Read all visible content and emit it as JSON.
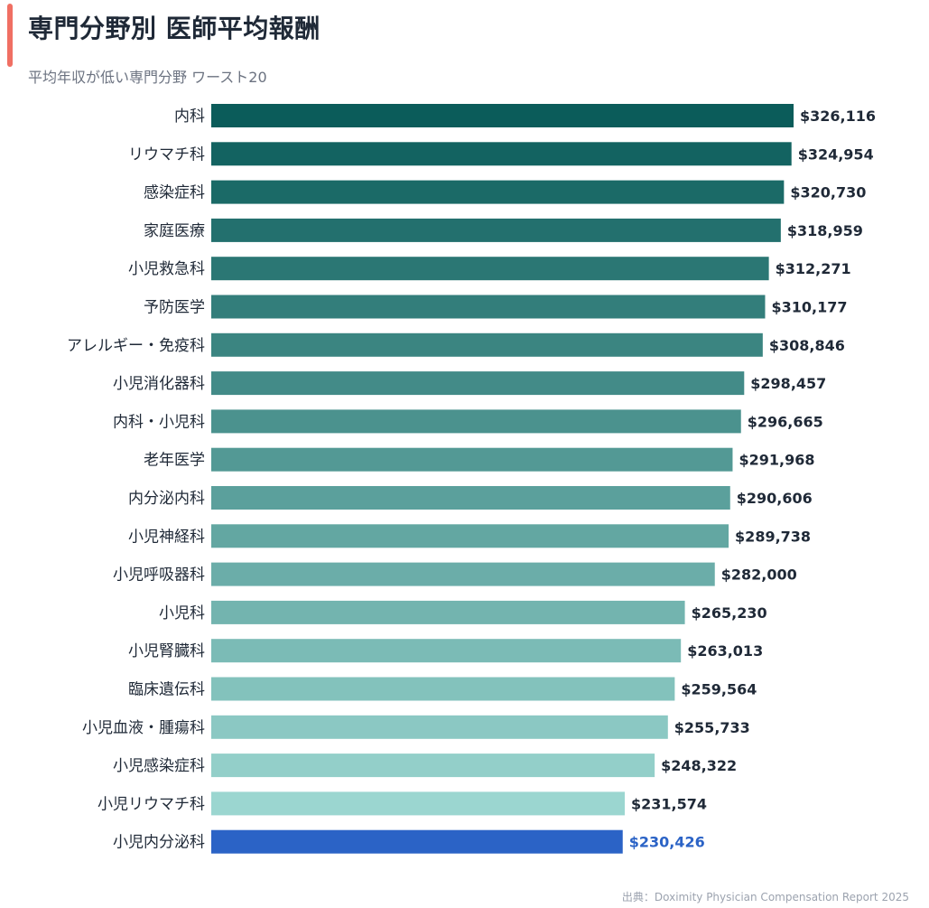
{
  "header": {
    "title": "専門分野別 医師平均報酬",
    "subtitle": "平均年収が低い専門分野 ワースト20"
  },
  "source": "出典：Doximity Physician Compensation Report 2025",
  "colors": {
    "accent": "#f06f63",
    "bar_dark": "#0b5c5a",
    "bar_light": "#9bd6d0",
    "highlight": "#2b63c6"
  },
  "chart_data": {
    "type": "bar",
    "orientation": "horizontal",
    "title": "専門分野別 医師平均報酬",
    "subtitle": "平均年収が低い専門分野 ワースト20",
    "categories": [
      "内科",
      "リウマチ科",
      "感染症科",
      "家庭医療",
      "小児救急科",
      "予防医学",
      "アレルギー・免疫科",
      "小児消化器科",
      "内科・小児科",
      "老年医学",
      "内分泌内科",
      "小児神経科",
      "小児呼吸器科",
      "小児科",
      "小児腎臓科",
      "臨床遺伝科",
      "小児血液・腫瘍科",
      "小児感染症科",
      "小児リウマチ科",
      "小児内分泌科"
    ],
    "values": [
      326116,
      324954,
      320730,
      318959,
      312271,
      310177,
      308846,
      298457,
      296665,
      291968,
      290606,
      289738,
      282000,
      265230,
      263013,
      259564,
      255733,
      248322,
      231574,
      230426
    ],
    "value_labels": [
      "$326,116",
      "$324,954",
      "$320,730",
      "$318,959",
      "$312,271",
      "$310,177",
      "$308,846",
      "$298,457",
      "$296,665",
      "$291,968",
      "$290,606",
      "$289,738",
      "$282,000",
      "$265,230",
      "$263,013",
      "$259,564",
      "$255,733",
      "$248,322",
      "$231,574",
      "$230,426"
    ],
    "highlight_index": 19,
    "grid": false,
    "legend": "none"
  }
}
